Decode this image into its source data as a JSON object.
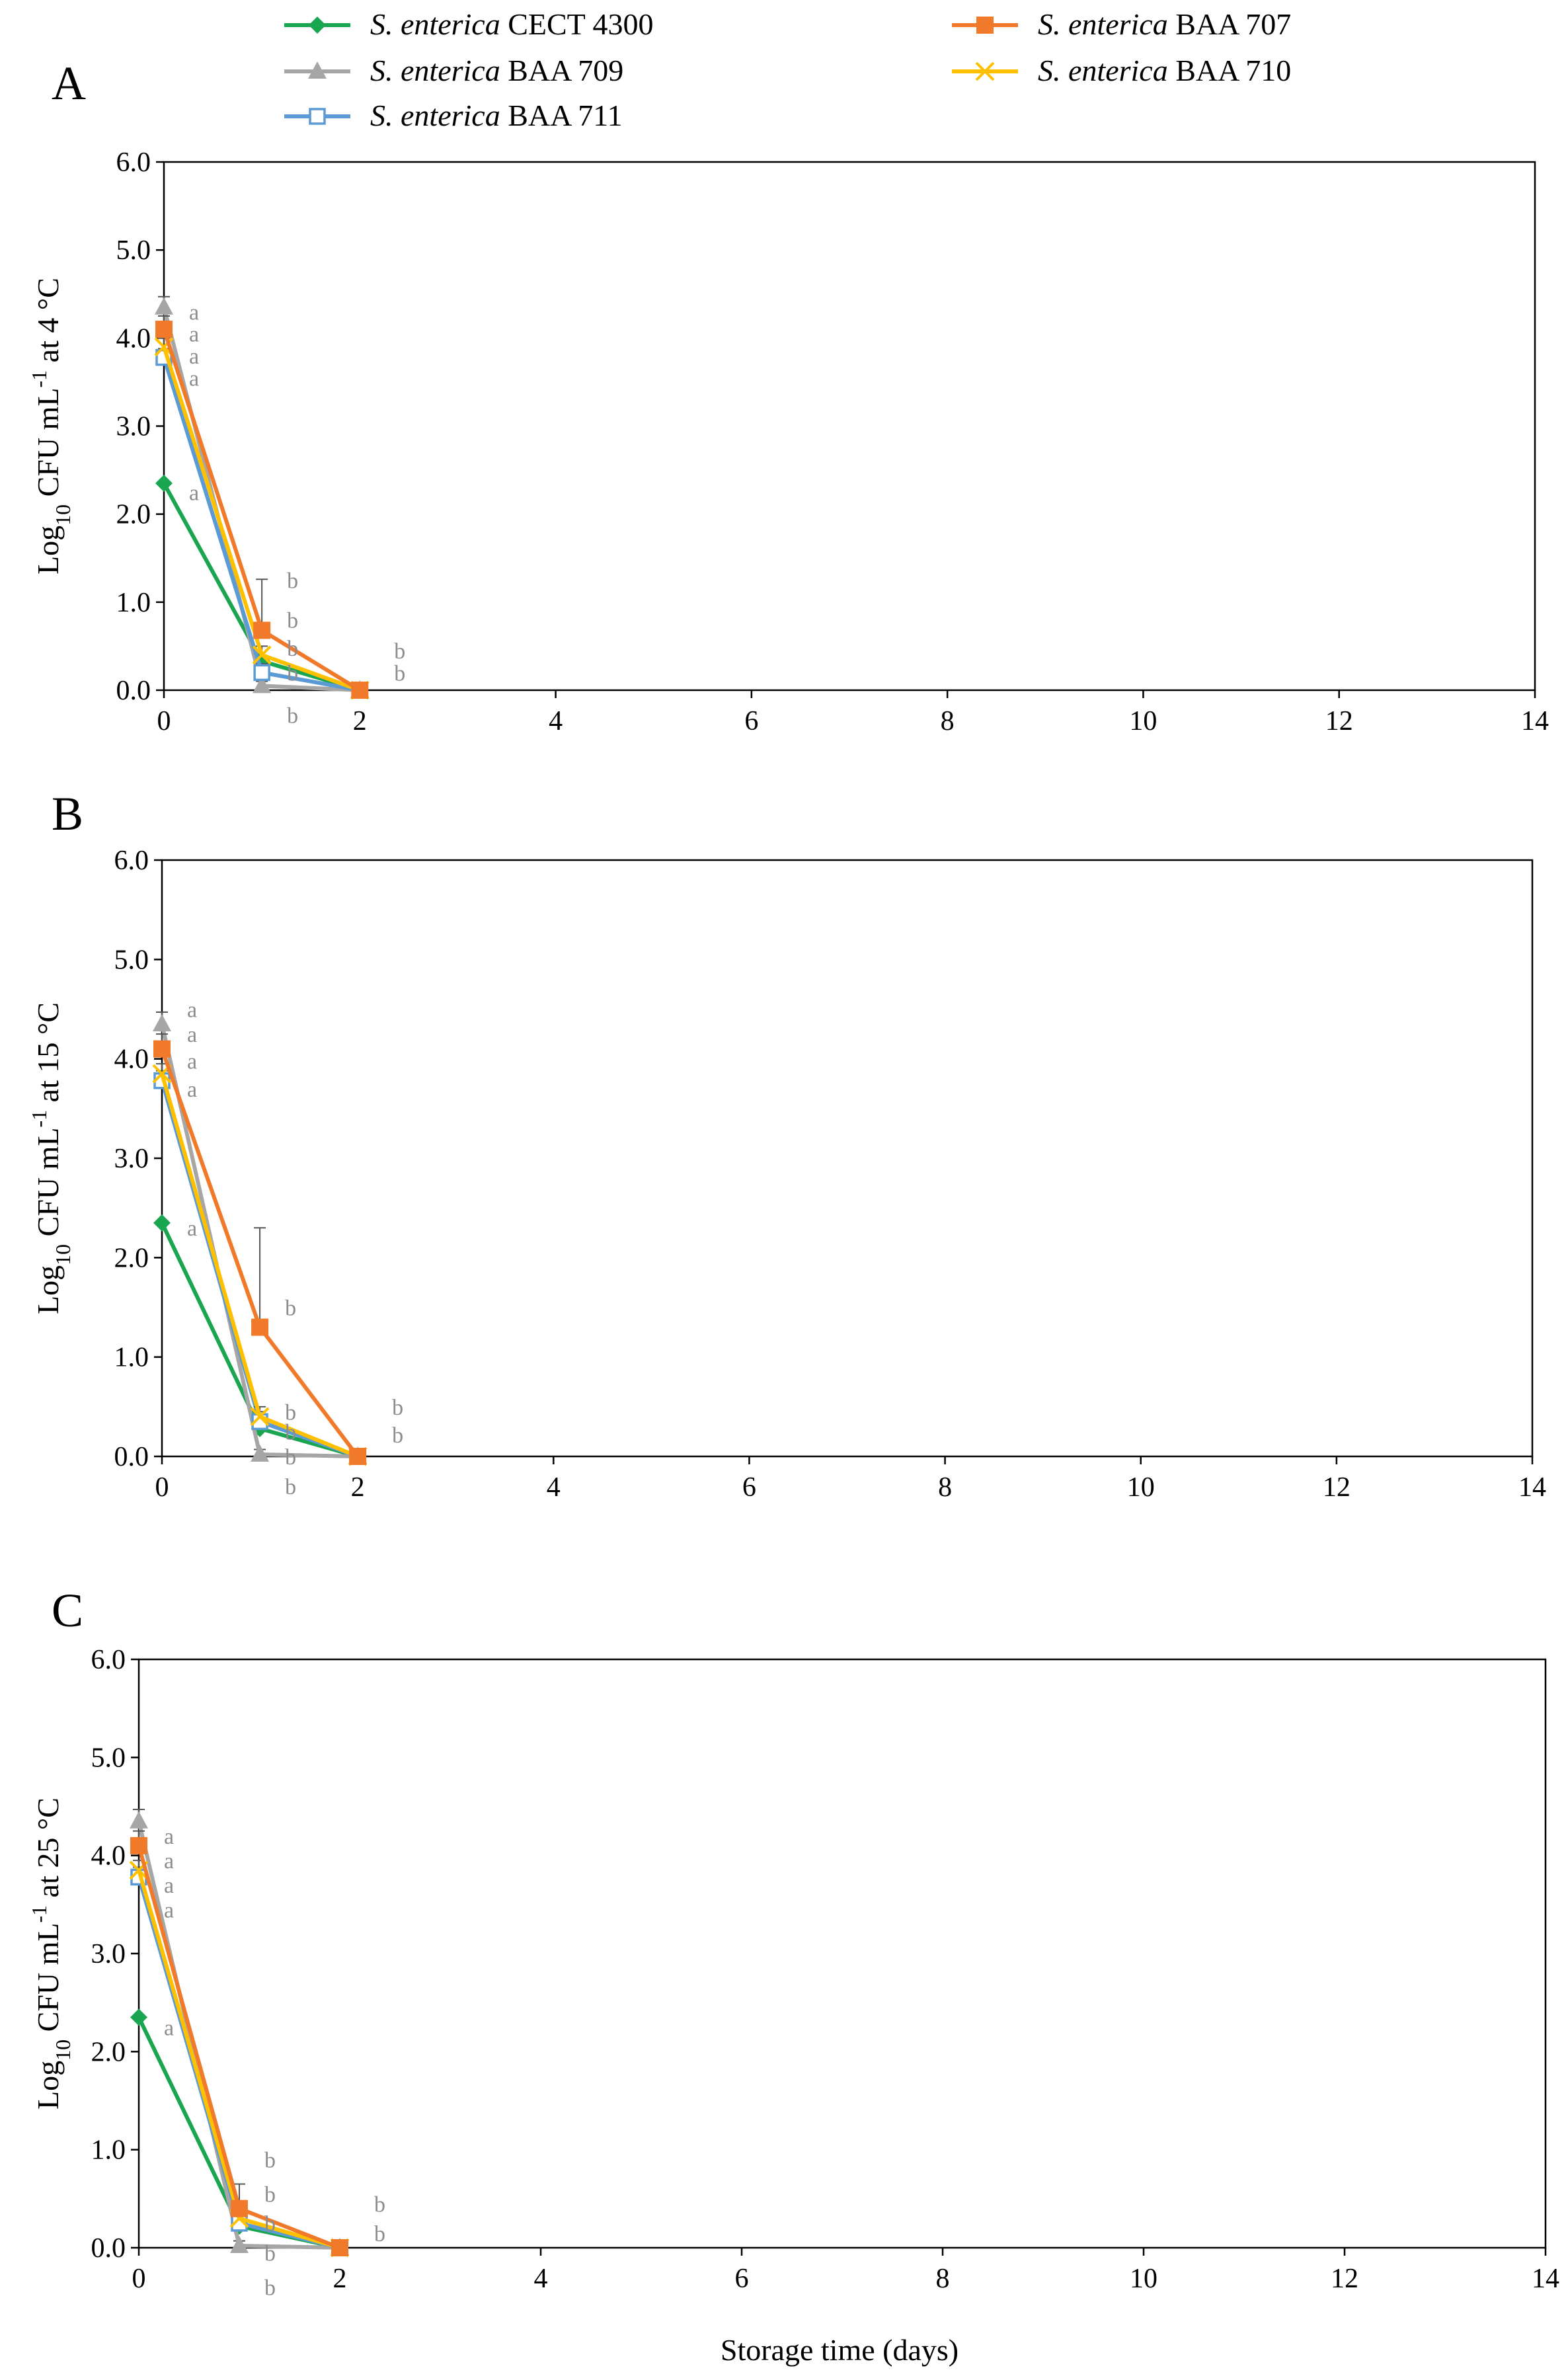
{
  "legend": [
    {
      "prefix": "S. enterica",
      "suffix": "CECT 4300",
      "color": "#1aa650",
      "marker": "diamond"
    },
    {
      "prefix": "S. enterica",
      "suffix": "BAA 707",
      "color": "#f07a2a",
      "marker": "square"
    },
    {
      "prefix": "S. enterica",
      "suffix": "BAA 709",
      "color": "#a6a6a6",
      "marker": "triangle"
    },
    {
      "prefix": "S. enterica",
      "suffix": "BAA 710",
      "color": "#ffc000",
      "marker": "x"
    },
    {
      "prefix": "S. enterica",
      "suffix": "BAA 711",
      "color": "#5b9bd5",
      "marker": "open-square"
    }
  ],
  "x_title": "Storage time (days)",
  "chart_data": [
    {
      "type": "line",
      "panel": "A",
      "ylabel": {
        "pre": "Log",
        "sub": "10",
        "mid": " CFU mL",
        "sup": "-1",
        "post": " at 4 °C"
      },
      "xlim": [
        0,
        14
      ],
      "ylim": [
        0,
        6
      ],
      "x_ticks": [
        "0",
        "2",
        "4",
        "6",
        "8",
        "10",
        "12",
        "14"
      ],
      "y_ticks": [
        "0.0",
        "1.0",
        "2.0",
        "3.0",
        "4.0",
        "5.0",
        "6.0"
      ],
      "x": [
        0,
        1,
        2
      ],
      "series": [
        {
          "name": "S. enterica CECT 4300",
          "values": [
            2.35,
            0.33,
            0.0
          ],
          "err": [
            0,
            0.05,
            0
          ]
        },
        {
          "name": "S. enterica BAA 707",
          "values": [
            4.1,
            0.68,
            0.0
          ],
          "err": [
            0.15,
            0.58,
            0
          ]
        },
        {
          "name": "S. enterica BAA 709",
          "values": [
            4.35,
            0.05,
            0.0
          ],
          "err": [
            0.12,
            0.05,
            0
          ]
        },
        {
          "name": "S. enterica BAA 710",
          "values": [
            3.9,
            0.4,
            0.0
          ],
          "err": [
            0.1,
            0.1,
            0
          ]
        },
        {
          "name": "S. enterica BAA 711",
          "values": [
            3.78,
            0.2,
            0.0
          ],
          "err": [
            0.1,
            0.1,
            0
          ]
        }
      ],
      "annotations": [
        {
          "x": 0,
          "y": 4.3,
          "text": "a"
        },
        {
          "x": 0,
          "y": 4.05,
          "text": "a"
        },
        {
          "x": 0,
          "y": 3.8,
          "text": "a"
        },
        {
          "x": 0,
          "y": 3.55,
          "text": "a"
        },
        {
          "x": 0,
          "y": 2.25,
          "text": "a"
        },
        {
          "x": 1,
          "y": 1.25,
          "text": "b"
        },
        {
          "x": 1,
          "y": 0.8,
          "text": "b"
        },
        {
          "x": 1,
          "y": 0.48,
          "text": "b"
        },
        {
          "x": 1,
          "y": 0.2,
          "text": "b"
        },
        {
          "x": 1,
          "y": -0.28,
          "text": "b"
        },
        {
          "x": 2,
          "y": 0.45,
          "text": "b"
        },
        {
          "x": 2,
          "y": 0.2,
          "text": "b"
        }
      ]
    },
    {
      "type": "line",
      "panel": "B",
      "ylabel": {
        "pre": "Log",
        "sub": "10",
        "mid": " CFU mL",
        "sup": "-1",
        "post": " at 15 °C"
      },
      "xlim": [
        0,
        14
      ],
      "ylim": [
        0,
        6
      ],
      "x_ticks": [
        "0",
        "2",
        "4",
        "6",
        "8",
        "10",
        "12",
        "14"
      ],
      "y_ticks": [
        "0.0",
        "1.0",
        "2.0",
        "3.0",
        "4.0",
        "5.0",
        "6.0"
      ],
      "x": [
        0,
        1,
        2
      ],
      "series": [
        {
          "name": "S. enterica CECT 4300",
          "values": [
            2.35,
            0.28,
            0.0
          ],
          "err": [
            0,
            0.05,
            0
          ]
        },
        {
          "name": "S. enterica BAA 707",
          "values": [
            4.1,
            1.3,
            0.0
          ],
          "err": [
            0.15,
            1.0,
            0
          ]
        },
        {
          "name": "S. enterica BAA 709",
          "values": [
            4.35,
            0.02,
            0.0
          ],
          "err": [
            0.12,
            0.05,
            0
          ]
        },
        {
          "name": "S. enterica BAA 710",
          "values": [
            3.85,
            0.4,
            0.0
          ],
          "err": [
            0.1,
            0.1,
            0
          ]
        },
        {
          "name": "S. enterica BAA 711",
          "values": [
            3.78,
            0.35,
            0.0
          ],
          "err": [
            0.1,
            0.1,
            0
          ]
        }
      ],
      "annotations": [
        {
          "x": 0,
          "y": 4.5,
          "text": "a"
        },
        {
          "x": 0,
          "y": 4.25,
          "text": "a"
        },
        {
          "x": 0,
          "y": 3.98,
          "text": "a"
        },
        {
          "x": 0,
          "y": 3.7,
          "text": "a"
        },
        {
          "x": 0,
          "y": 2.3,
          "text": "a"
        },
        {
          "x": 1,
          "y": 1.5,
          "text": "b"
        },
        {
          "x": 1,
          "y": 0.45,
          "text": "b"
        },
        {
          "x": 1,
          "y": 0.25,
          "text": "b"
        },
        {
          "x": 1,
          "y": 0.0,
          "text": "b"
        },
        {
          "x": 1,
          "y": -0.3,
          "text": "b"
        },
        {
          "x": 2,
          "y": 0.5,
          "text": "b"
        },
        {
          "x": 2,
          "y": 0.22,
          "text": "b"
        }
      ]
    },
    {
      "type": "line",
      "panel": "C",
      "ylabel": {
        "pre": "Log",
        "sub": "10",
        "mid": " CFU mL",
        "sup": "-1",
        "post": " at 25 °C"
      },
      "xlim": [
        0,
        14
      ],
      "ylim": [
        0,
        6
      ],
      "x_ticks": [
        "0",
        "2",
        "4",
        "6",
        "8",
        "10",
        "12",
        "14"
      ],
      "y_ticks": [
        "0.0",
        "1.0",
        "2.0",
        "3.0",
        "4.0",
        "5.0",
        "6.0"
      ],
      "x": [
        0,
        1,
        2
      ],
      "series": [
        {
          "name": "S. enterica CECT 4300",
          "values": [
            2.35,
            0.22,
            0.0
          ],
          "err": [
            0,
            0.05,
            0
          ]
        },
        {
          "name": "S. enterica BAA 707",
          "values": [
            4.1,
            0.4,
            0.0
          ],
          "err": [
            0.15,
            0.25,
            0
          ]
        },
        {
          "name": "S. enterica BAA 709",
          "values": [
            4.35,
            0.02,
            0.0
          ],
          "err": [
            0.12,
            0.05,
            0
          ]
        },
        {
          "name": "S. enterica BAA 710",
          "values": [
            3.85,
            0.3,
            0.0
          ],
          "err": [
            0.1,
            0.1,
            0
          ]
        },
        {
          "name": "S. enterica BAA 711",
          "values": [
            3.78,
            0.25,
            0.0
          ],
          "err": [
            0.1,
            0.1,
            0
          ]
        }
      ],
      "annotations": [
        {
          "x": 0,
          "y": 4.2,
          "text": "a"
        },
        {
          "x": 0,
          "y": 3.95,
          "text": "a"
        },
        {
          "x": 0,
          "y": 3.7,
          "text": "a"
        },
        {
          "x": 0,
          "y": 3.45,
          "text": "a"
        },
        {
          "x": 0,
          "y": 2.25,
          "text": "a"
        },
        {
          "x": 1,
          "y": 0.9,
          "text": "b"
        },
        {
          "x": 1,
          "y": 0.55,
          "text": "b"
        },
        {
          "x": 1,
          "y": 0.25,
          "text": "b"
        },
        {
          "x": 1,
          "y": -0.05,
          "text": "b"
        },
        {
          "x": 1,
          "y": -0.4,
          "text": "b"
        },
        {
          "x": 2,
          "y": 0.45,
          "text": "b"
        },
        {
          "x": 2,
          "y": 0.15,
          "text": "b"
        }
      ]
    }
  ]
}
